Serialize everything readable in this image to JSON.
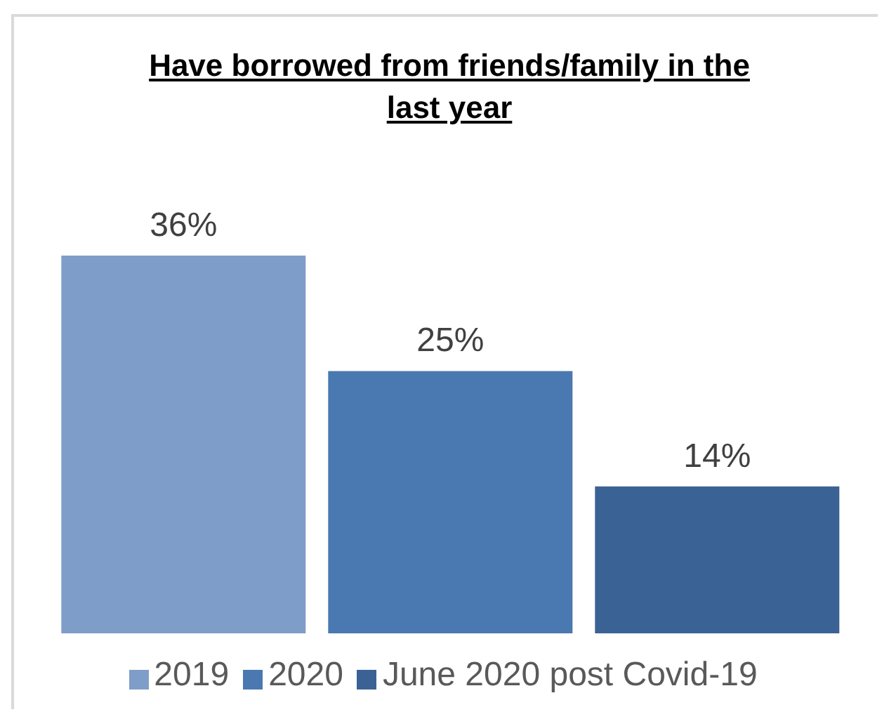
{
  "chart_data": {
    "type": "bar",
    "title": "Have borrowed from friends/family in the last year",
    "categories": [
      null
    ],
    "series": [
      {
        "name": "2019",
        "color": "#7f9dc9",
        "values": [
          36
        ],
        "value_labels": [
          "36%"
        ]
      },
      {
        "name": "2020",
        "color": "#4a78b0",
        "values": [
          25
        ],
        "value_labels": [
          "25%"
        ]
      },
      {
        "name": "June 2020 post Covid-19",
        "color": "#3b6294",
        "values": [
          14
        ],
        "value_labels": [
          "14%"
        ]
      }
    ],
    "legend": "bottom"
  }
}
